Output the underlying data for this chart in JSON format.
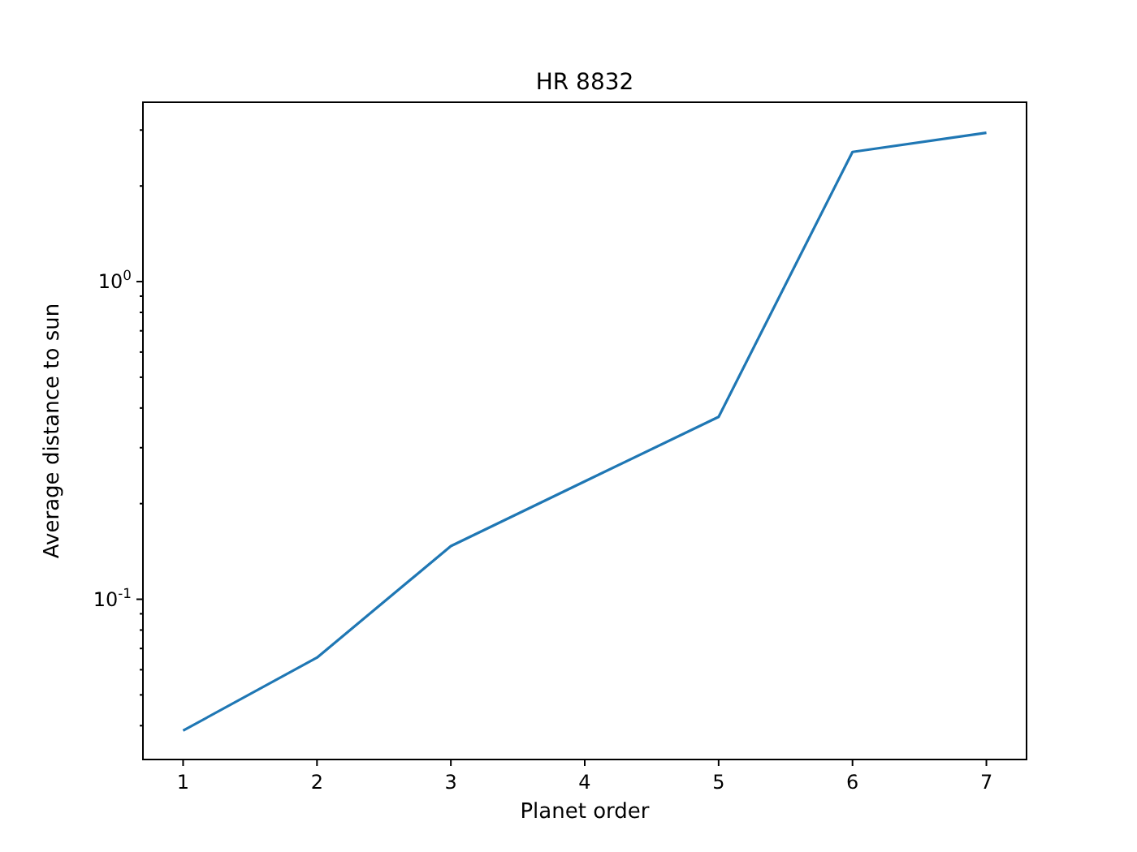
{
  "chart_data": {
    "type": "line",
    "title": "HR 8832",
    "xlabel": "Planet order",
    "ylabel": "Average distance to sun",
    "x": [
      1,
      2,
      3,
      4,
      5,
      6,
      7
    ],
    "series": [
      {
        "color": "#1f77b4",
        "values": [
          0.0386,
          0.0655,
          0.147,
          0.235,
          0.375,
          2.56,
          2.94
        ]
      }
    ],
    "log": "y",
    "xlim": [
      0.7,
      7.3
    ],
    "xticks": [
      1,
      2,
      3,
      4,
      5,
      6,
      7
    ],
    "ylim": [
      0.0313,
      3.67
    ],
    "yticks": [
      {
        "value": 0.04,
        "label": null
      },
      {
        "value": 0.05,
        "label": null
      },
      {
        "value": 0.06,
        "label": null
      },
      {
        "value": 0.07,
        "label": null
      },
      {
        "value": 0.08,
        "label": null
      },
      {
        "value": 0.09,
        "label": null
      },
      {
        "value": 0.1,
        "label": "10$^{-1}$"
      },
      {
        "value": 0.2,
        "label": null
      },
      {
        "value": 0.3,
        "label": null
      },
      {
        "value": 0.4,
        "label": null
      },
      {
        "value": 0.5,
        "label": null
      },
      {
        "value": 0.6,
        "label": null
      },
      {
        "value": 0.7,
        "label": null
      },
      {
        "value": 0.8,
        "label": null
      },
      {
        "value": 0.9,
        "label": null
      },
      {
        "value": 1,
        "label": "10$^{0}$"
      },
      {
        "value": 2,
        "label": null
      },
      {
        "value": 3,
        "label": null
      }
    ],
    "grid": false,
    "line_style": "solid",
    "marker": "none"
  }
}
